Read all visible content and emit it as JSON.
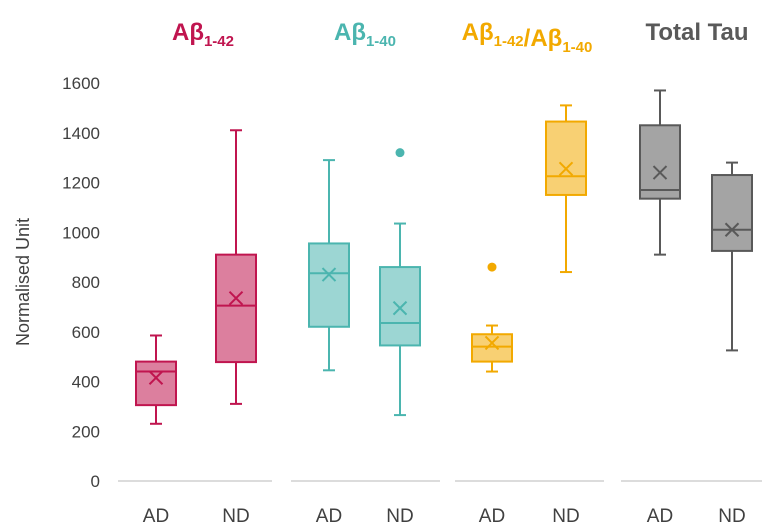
{
  "chart_data": {
    "type": "box",
    "ylabel": "Normalised Unit",
    "ylim": [
      0,
      1600
    ],
    "yticks": [
      0,
      200,
      400,
      600,
      800,
      1000,
      1200,
      1400,
      1600
    ],
    "grid": false,
    "panels": [
      {
        "title": "Aβ1-42",
        "title_main": "Aβ",
        "title_sub": "1-42",
        "color": "#C0154F",
        "boxes": [
          {
            "category": "AD",
            "min": 230,
            "q1": 305,
            "median": 440,
            "q3": 480,
            "max": 585,
            "mean": 415,
            "outliers": []
          },
          {
            "category": "ND",
            "min": 310,
            "q1": 478,
            "median": 705,
            "q3": 910,
            "max": 1410,
            "mean": 735,
            "outliers": []
          }
        ]
      },
      {
        "title": "Aβ1-40",
        "title_main": "Aβ",
        "title_sub": "1-40",
        "color": "#4BB5AF",
        "boxes": [
          {
            "category": "AD",
            "min": 445,
            "q1": 620,
            "median": 835,
            "q3": 955,
            "max": 1290,
            "mean": 830,
            "outliers": []
          },
          {
            "category": "ND",
            "min": 265,
            "q1": 545,
            "median": 635,
            "q3": 860,
            "max": 1035,
            "mean": 695,
            "outliers": [
              1320
            ]
          }
        ]
      },
      {
        "title": "Aβ1-42/Aβ1-40",
        "title_parts": [
          {
            "main": "Aβ",
            "sub": "1-42"
          },
          {
            "main": "/Aβ",
            "sub": "1-40"
          }
        ],
        "color": "#F2A900",
        "boxes": [
          {
            "category": "AD",
            "min": 440,
            "q1": 480,
            "median": 540,
            "q3": 590,
            "max": 625,
            "mean": 555,
            "outliers": [
              860
            ]
          },
          {
            "category": "ND",
            "min": 840,
            "q1": 1150,
            "median": 1225,
            "q3": 1445,
            "max": 1510,
            "mean": 1255,
            "outliers": []
          }
        ]
      },
      {
        "title": "Total Tau",
        "color": "#595959",
        "boxes": [
          {
            "category": "AD",
            "min": 910,
            "q1": 1135,
            "median": 1170,
            "q3": 1430,
            "max": 1570,
            "mean": 1240,
            "outliers": []
          },
          {
            "category": "ND",
            "min": 525,
            "q1": 925,
            "median": 1010,
            "q3": 1230,
            "max": 1280,
            "mean": 1010,
            "outliers": []
          }
        ]
      }
    ]
  }
}
